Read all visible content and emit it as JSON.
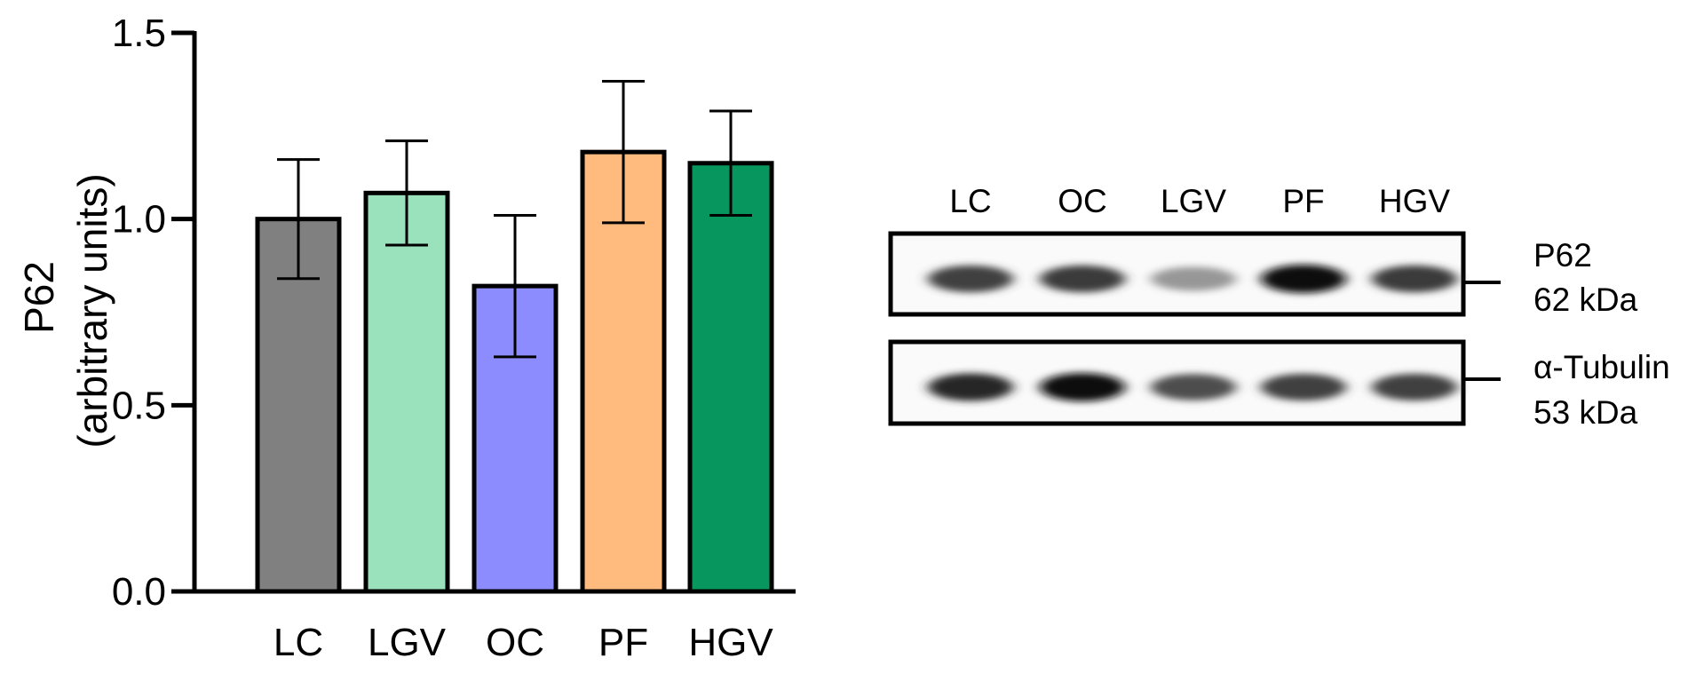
{
  "chart_data": {
    "type": "bar",
    "categories": [
      "LC",
      "LGV",
      "OC",
      "PF",
      "HGV"
    ],
    "values": [
      1.0,
      1.07,
      0.82,
      1.18,
      1.15
    ],
    "error_lower": [
      0.84,
      0.93,
      0.63,
      0.99,
      1.01
    ],
    "error_upper": [
      1.16,
      1.21,
      1.01,
      1.37,
      1.29
    ],
    "bar_colors": [
      "#808080",
      "#9ae2bb",
      "#8c8cff",
      "#ffba7e",
      "#07965e"
    ],
    "ylabel_line1": "P62",
    "ylabel_line2": "(arbitrary units)",
    "ylim": [
      0,
      1.5
    ],
    "yticks": [
      0,
      0.5,
      1.0,
      1.5
    ],
    "ytick_labels": [
      "0.0",
      "0.5",
      "1.0",
      "1.5"
    ],
    "grid": false
  },
  "blot": {
    "lanes": [
      "LC",
      "OC",
      "LGV",
      "PF",
      "HGV"
    ],
    "rows": [
      {
        "protein": "P62",
        "size": "62 kDa",
        "intensities": [
          0.78,
          0.8,
          0.38,
          1.0,
          0.8
        ]
      },
      {
        "protein": "α-Tubulin",
        "size": "53 kDa",
        "intensities": [
          0.9,
          1.0,
          0.72,
          0.78,
          0.78
        ]
      }
    ]
  }
}
